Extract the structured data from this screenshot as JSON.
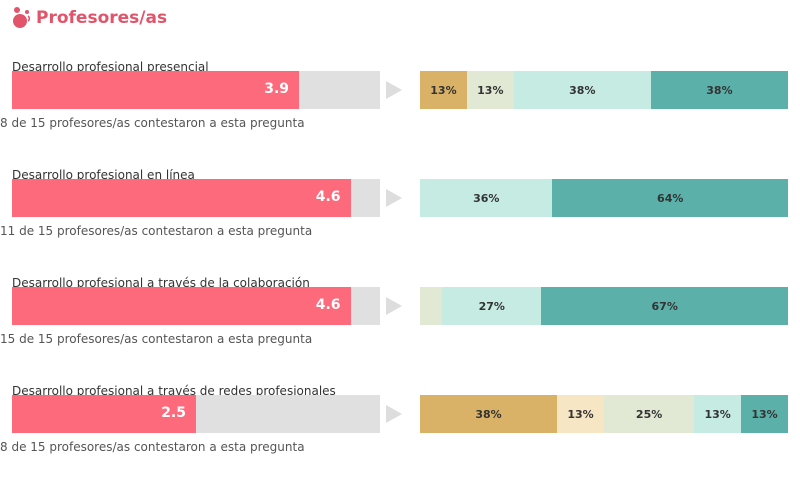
{
  "header": {
    "title": "Profesores/as"
  },
  "colors": {
    "score": "#fc6a7b",
    "track": "#e0e0e0",
    "segments": [
      "#d9b267",
      "#f6e6c4",
      "#e1e9d5",
      "#c6ebe3",
      "#5bb1aa"
    ]
  },
  "chart_data": {
    "type": "bar",
    "title": "Profesores/as",
    "score_range": [
      0,
      5
    ],
    "rows": [
      {
        "label": "Desarrollo profesional presencial",
        "score": 3.9,
        "score_label": "3.9",
        "note": "8 de 15 profesores/as contestaron a esta pregunta",
        "segments": [
          {
            "level": 0,
            "value": 13,
            "label": "13%"
          },
          {
            "level": 2,
            "value": 13,
            "label": "13%"
          },
          {
            "level": 3,
            "value": 38,
            "label": "38%"
          },
          {
            "level": 4,
            "value": 38,
            "label": "38%"
          }
        ]
      },
      {
        "label": "Desarrollo profesional en línea",
        "score": 4.6,
        "score_label": "4.6",
        "note": "11 de 15 profesores/as contestaron a esta pregunta",
        "segments": [
          {
            "level": 3,
            "value": 36,
            "label": "36%"
          },
          {
            "level": 4,
            "value": 64,
            "label": "64%"
          }
        ]
      },
      {
        "label": "Desarrollo profesional a través de la colaboración",
        "score": 4.6,
        "score_label": "4.6",
        "note": "15 de 15 profesores/as contestaron a esta pregunta",
        "segments": [
          {
            "level": 2,
            "value": 6,
            "label": ""
          },
          {
            "level": 3,
            "value": 27,
            "label": "27%"
          },
          {
            "level": 4,
            "value": 67,
            "label": "67%"
          }
        ]
      },
      {
        "label": "Desarrollo profesional a través de redes profesionales",
        "score": 2.5,
        "score_label": "2.5",
        "note": "8 de 15 profesores/as contestaron a esta pregunta",
        "segments": [
          {
            "level": 0,
            "value": 38,
            "label": "38%"
          },
          {
            "level": 1,
            "value": 13,
            "label": "13%"
          },
          {
            "level": 2,
            "value": 25,
            "label": "25%"
          },
          {
            "level": 3,
            "value": 13,
            "label": "13%"
          },
          {
            "level": 4,
            "value": 13,
            "label": "13%"
          }
        ]
      }
    ]
  }
}
